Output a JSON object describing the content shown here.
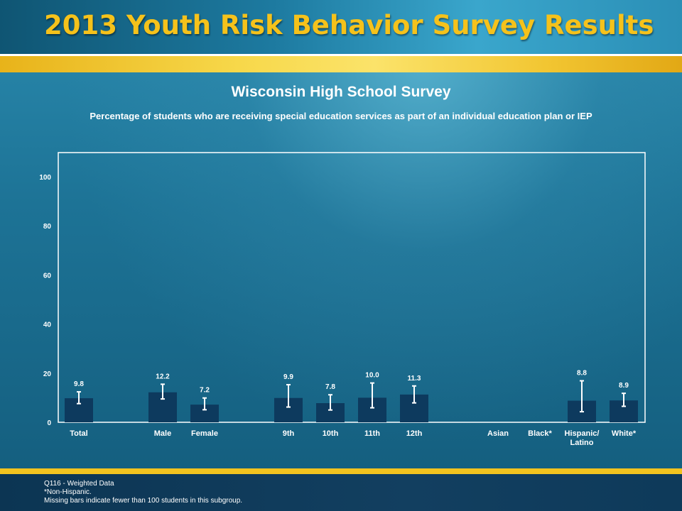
{
  "header": {
    "title": "2013 Youth Risk Behavior Survey Results"
  },
  "chart_data": {
    "type": "bar",
    "title": "Wisconsin High School Survey",
    "subtitle": "Percentage of students who are receiving special education services as part of an individual education plan or IEP",
    "categories": [
      "Total",
      "Male",
      "Female",
      "9th",
      "10th",
      "11th",
      "12th",
      "Asian",
      "Black*",
      "Hispanic/\nLatino",
      "White*"
    ],
    "values": [
      9.8,
      12.2,
      7.2,
      9.9,
      7.8,
      10.0,
      11.3,
      null,
      null,
      8.8,
      8.9
    ],
    "value_labels": [
      "9.8",
      "12.2",
      "7.2",
      "9.9",
      "7.8",
      "10.0",
      "11.3",
      "",
      "",
      "8.8",
      "8.9"
    ],
    "error_low": [
      7.6,
      9.5,
      5.1,
      6.2,
      5.0,
      5.9,
      7.9,
      null,
      null,
      4.3,
      6.5
    ],
    "error_high": [
      12.4,
      15.5,
      9.9,
      15.3,
      11.2,
      16.0,
      14.8,
      null,
      null,
      16.9,
      11.8
    ],
    "yticks": [
      0,
      20,
      40,
      60,
      80,
      100
    ],
    "ylim": [
      0,
      100
    ],
    "grid": false,
    "bar_color": "#0d3a5e",
    "error_color": "#ffffff"
  },
  "footer": {
    "lines": [
      "Q116 - Weighted Data",
      "*Non-Hispanic.",
      "Missing bars indicate fewer than 100 students in this subgroup."
    ]
  }
}
